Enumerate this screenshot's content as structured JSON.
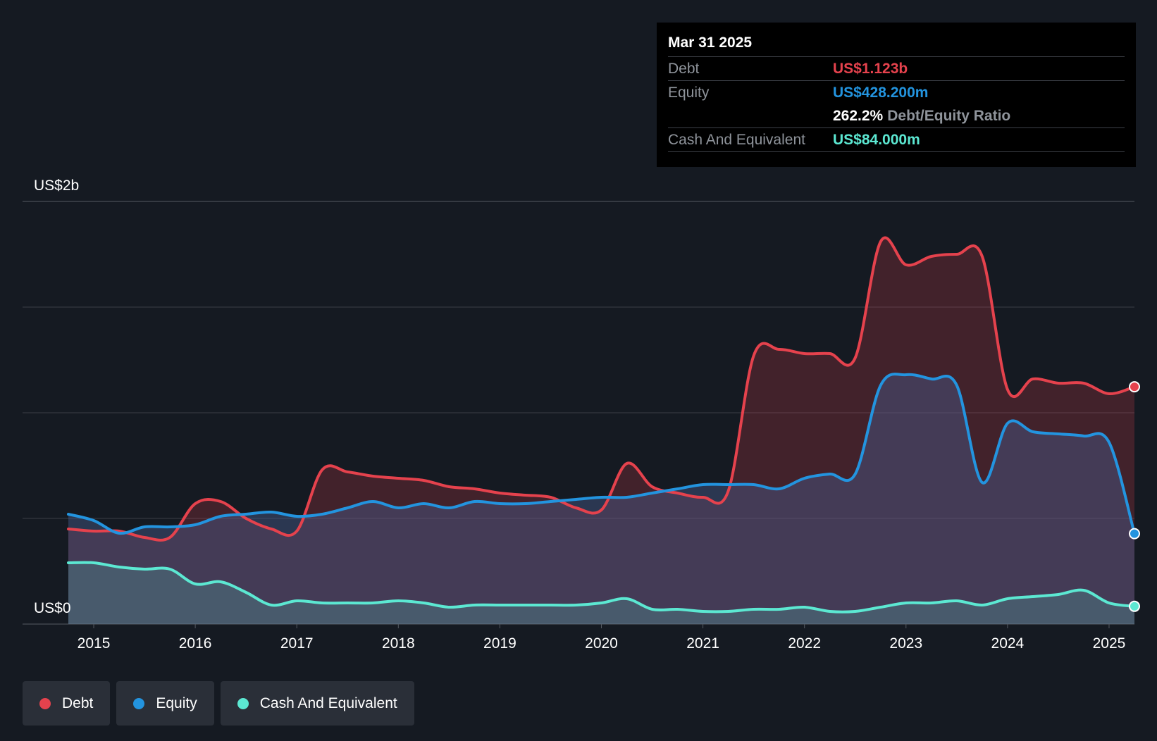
{
  "colors": {
    "background": "#151a22",
    "debt": "#e5424d",
    "equity": "#2394df",
    "cash": "#5ce8d2",
    "grid": "#3a3f47"
  },
  "tooltip": {
    "date": "Mar 31 2025",
    "debt_label": "Debt",
    "debt_value": "US$1.123b",
    "equity_label": "Equity",
    "equity_value": "US$428.200m",
    "ratio_value": "262.2%",
    "ratio_label": "Debt/Equity Ratio",
    "cash_label": "Cash And Equivalent",
    "cash_value": "US$84.000m"
  },
  "legend": [
    {
      "label": "Debt",
      "color": "#e5424d"
    },
    {
      "label": "Equity",
      "color": "#2394df"
    },
    {
      "label": "Cash And Equivalent",
      "color": "#5ce8d2"
    }
  ],
  "chart_data": {
    "type": "area",
    "y_axis_labels": [
      "US$0",
      "US$2b"
    ],
    "ylim": [
      0,
      2.0
    ],
    "xlim": [
      2014.75,
      2025.25
    ],
    "grid": true,
    "x_ticks": [
      2015,
      2016,
      2017,
      2018,
      2019,
      2020,
      2021,
      2022,
      2023,
      2024,
      2025
    ],
    "x_tick_labels": [
      "2015",
      "2016",
      "2017",
      "2018",
      "2019",
      "2020",
      "2021",
      "2022",
      "2023",
      "2024",
      "2025"
    ],
    "y_unit": "US$ billions",
    "series": [
      {
        "name": "Debt",
        "x": [
          2014.75,
          2015.0,
          2015.25,
          2015.5,
          2015.75,
          2016.0,
          2016.25,
          2016.5,
          2016.75,
          2017.0,
          2017.25,
          2017.5,
          2017.75,
          2018.0,
          2018.25,
          2018.5,
          2018.75,
          2019.0,
          2019.25,
          2019.5,
          2019.75,
          2020.0,
          2020.25,
          2020.5,
          2020.75,
          2021.0,
          2021.25,
          2021.5,
          2021.75,
          2022.0,
          2022.25,
          2022.5,
          2022.75,
          2023.0,
          2023.25,
          2023.5,
          2023.75,
          2024.0,
          2024.25,
          2024.5,
          2024.75,
          2025.0,
          2025.25
        ],
        "values": [
          0.45,
          0.44,
          0.44,
          0.41,
          0.41,
          0.57,
          0.58,
          0.5,
          0.45,
          0.44,
          0.73,
          0.72,
          0.7,
          0.69,
          0.68,
          0.65,
          0.64,
          0.62,
          0.61,
          0.6,
          0.55,
          0.54,
          0.76,
          0.65,
          0.62,
          0.6,
          0.63,
          1.27,
          1.3,
          1.28,
          1.28,
          1.26,
          1.81,
          1.7,
          1.74,
          1.75,
          1.74,
          1.11,
          1.16,
          1.14,
          1.14,
          1.09,
          1.123
        ]
      },
      {
        "name": "Equity",
        "x": [
          2014.75,
          2015.0,
          2015.25,
          2015.5,
          2015.75,
          2016.0,
          2016.25,
          2016.5,
          2016.75,
          2017.0,
          2017.25,
          2017.5,
          2017.75,
          2018.0,
          2018.25,
          2018.5,
          2018.75,
          2019.0,
          2019.25,
          2019.5,
          2019.75,
          2020.0,
          2020.25,
          2020.5,
          2020.75,
          2021.0,
          2021.25,
          2021.5,
          2021.75,
          2022.0,
          2022.25,
          2022.5,
          2022.75,
          2023.0,
          2023.25,
          2023.5,
          2023.75,
          2024.0,
          2024.25,
          2024.5,
          2024.75,
          2025.0,
          2025.25
        ],
        "values": [
          0.52,
          0.49,
          0.43,
          0.46,
          0.46,
          0.47,
          0.51,
          0.52,
          0.53,
          0.51,
          0.52,
          0.55,
          0.58,
          0.55,
          0.57,
          0.55,
          0.58,
          0.57,
          0.57,
          0.58,
          0.59,
          0.6,
          0.6,
          0.62,
          0.64,
          0.66,
          0.66,
          0.66,
          0.64,
          0.69,
          0.71,
          0.71,
          1.13,
          1.18,
          1.16,
          1.13,
          0.67,
          0.95,
          0.91,
          0.9,
          0.89,
          0.86,
          0.428
        ]
      },
      {
        "name": "Cash And Equivalent",
        "x": [
          2014.75,
          2015.0,
          2015.25,
          2015.5,
          2015.75,
          2016.0,
          2016.25,
          2016.5,
          2016.75,
          2017.0,
          2017.25,
          2017.5,
          2017.75,
          2018.0,
          2018.25,
          2018.5,
          2018.75,
          2019.0,
          2019.25,
          2019.5,
          2019.75,
          2020.0,
          2020.25,
          2020.5,
          2020.75,
          2021.0,
          2021.25,
          2021.5,
          2021.75,
          2022.0,
          2022.25,
          2022.5,
          2022.75,
          2023.0,
          2023.25,
          2023.5,
          2023.75,
          2024.0,
          2024.25,
          2024.5,
          2024.75,
          2025.0,
          2025.25
        ],
        "values": [
          0.29,
          0.29,
          0.27,
          0.26,
          0.26,
          0.19,
          0.2,
          0.15,
          0.09,
          0.11,
          0.1,
          0.1,
          0.1,
          0.11,
          0.1,
          0.08,
          0.09,
          0.09,
          0.09,
          0.09,
          0.09,
          0.1,
          0.12,
          0.07,
          0.07,
          0.06,
          0.06,
          0.07,
          0.07,
          0.08,
          0.06,
          0.06,
          0.08,
          0.1,
          0.1,
          0.11,
          0.09,
          0.12,
          0.13,
          0.14,
          0.16,
          0.1,
          0.084
        ]
      }
    ]
  }
}
